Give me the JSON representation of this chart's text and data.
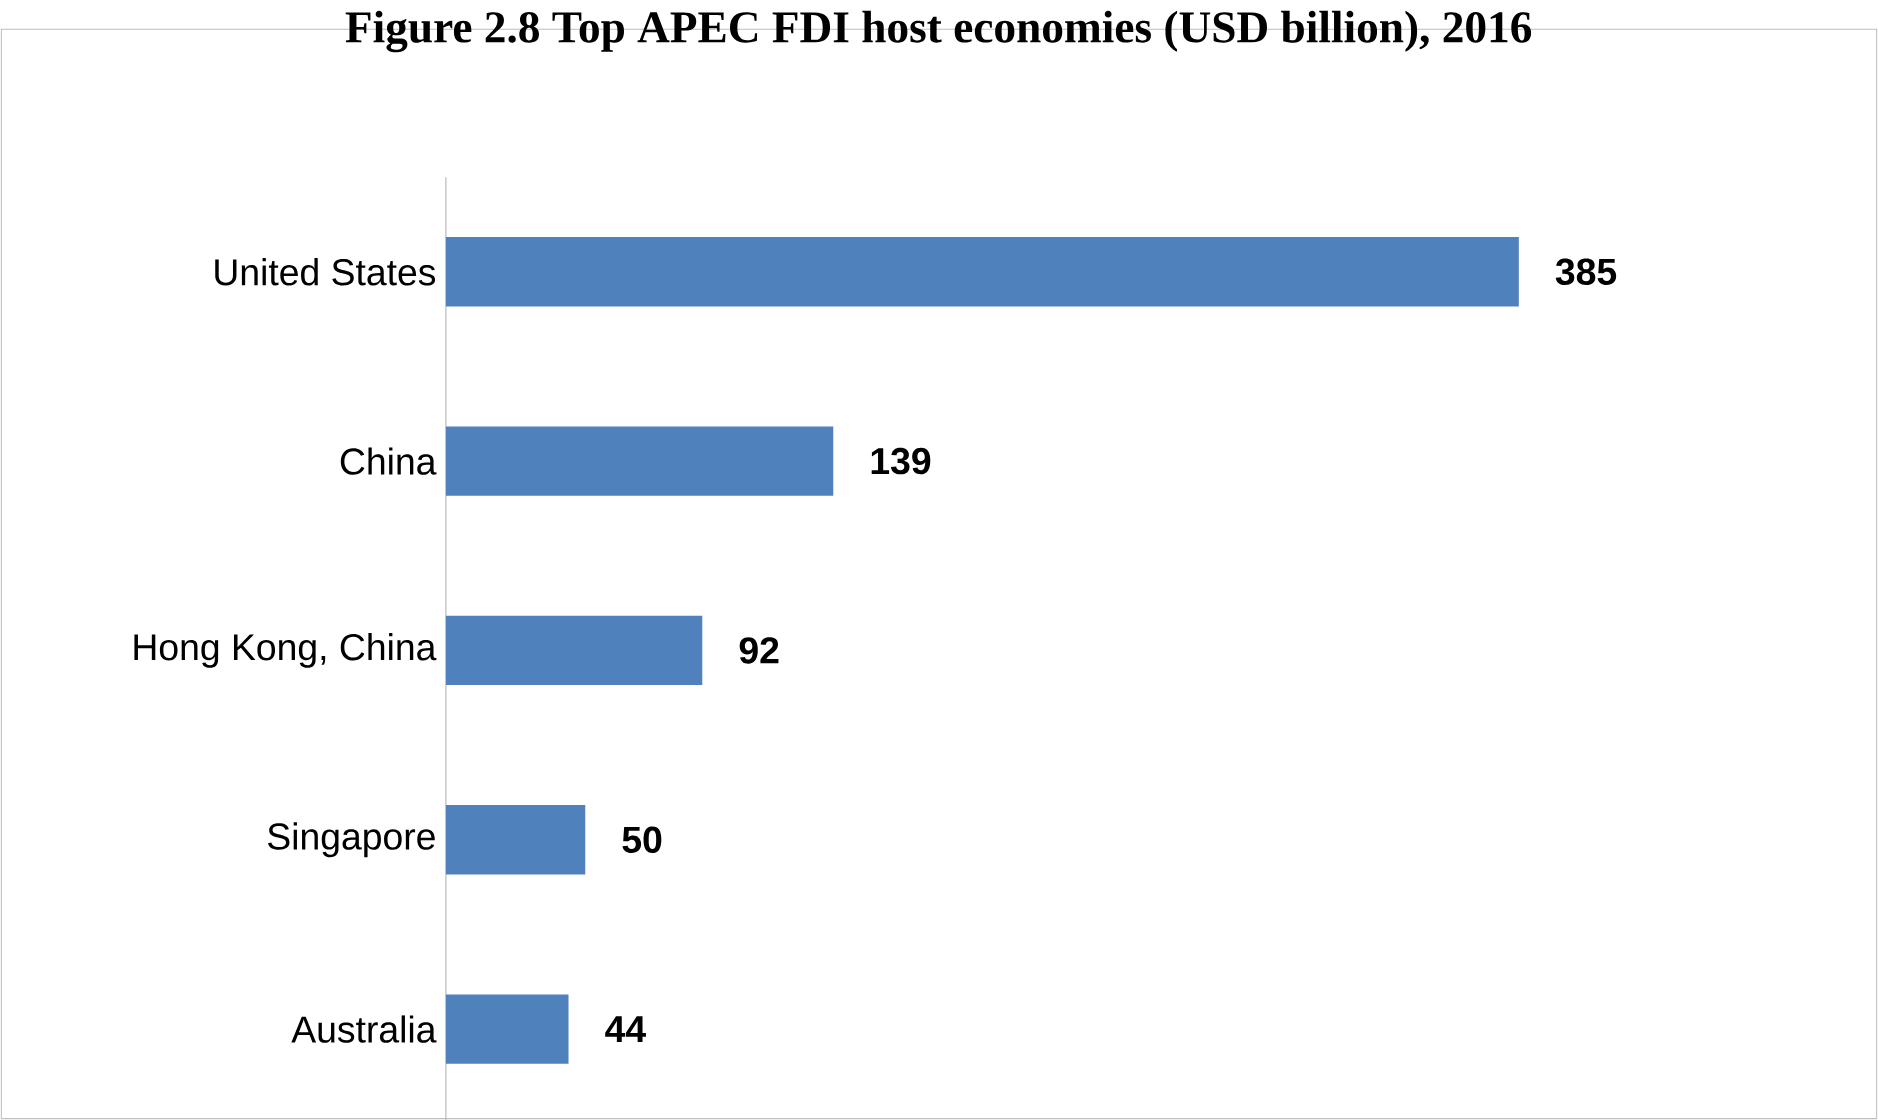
{
  "chart_data": {
    "type": "bar",
    "orientation": "horizontal",
    "title": "Figure 2.8 Top APEC FDI host economies (USD billion), 2016",
    "categories": [
      "United States",
      "China",
      "Hong Kong, China",
      "Singapore",
      "Australia"
    ],
    "values": [
      385,
      139,
      92,
      50,
      44
    ],
    "color": "#4f81bd",
    "data_labels": true
  }
}
